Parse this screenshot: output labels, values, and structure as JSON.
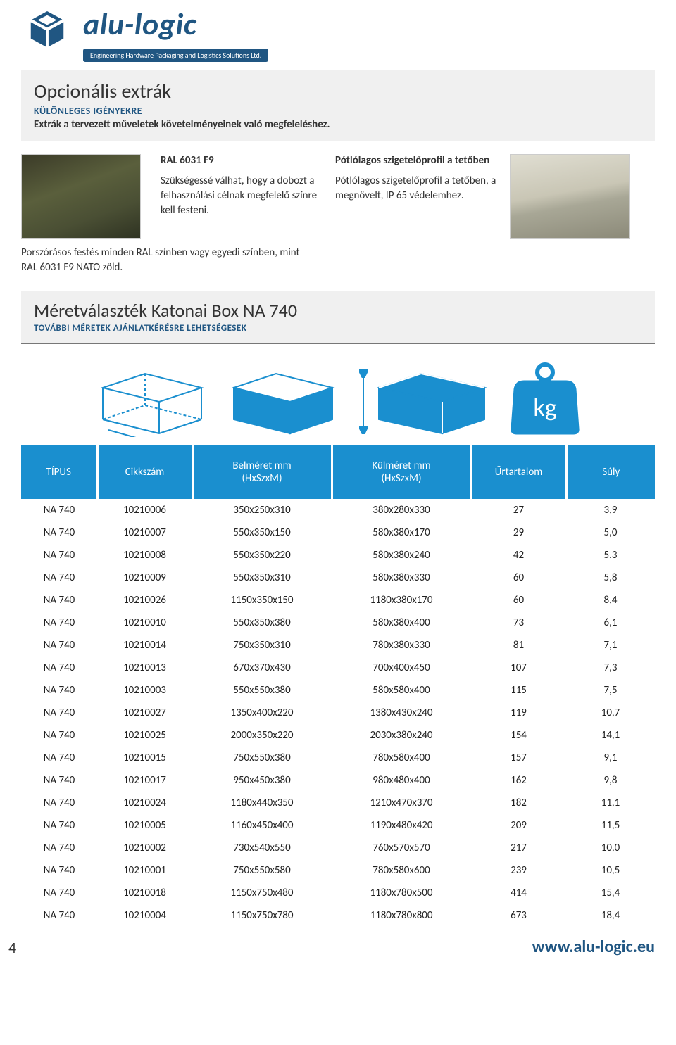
{
  "brand": {
    "name": "alu-logic",
    "tagline": "Engineering Hardware Packaging and Logistics Solutions Ltd.",
    "color_primary": "#205682",
    "color_accent": "#1a8fcf"
  },
  "extras_section": {
    "title": "Opcionális extrák",
    "subtitle1": "KÜLÖNLEGES IGÉNYEKRE",
    "subtitle2": "Extrák a tervezett műveletek követelményeinek való megfeleléshez.",
    "col1": {
      "heading": "RAL 6031 F9",
      "body": "Szükségessé válhat, hogy a dobozt a felhasználási célnak megfelelő színre kell festeni.",
      "caption": "Porszórásos festés minden RAL színben vagy egyedi színben, mint RAL 6031 F9 NATO zöld."
    },
    "col2": {
      "heading": "Pótlólagos szigetelőprofil a tetőben",
      "body": "Pótlólagos szigetelőprofil a tetőben, a megnövelt, IP 65 védelemhez."
    }
  },
  "sizes_section": {
    "title": "Méretválaszték Katonai Box NA 740",
    "subtitle": "TOVÁBBI MÉRETEK AJÁNLATKÉRÉSRE LEHETSÉGESEK"
  },
  "icons": {
    "kg_label": "kg",
    "stroke": "#1a8fcf",
    "fill": "#1a8fcf"
  },
  "table": {
    "columns": [
      "TÍPUS",
      "Cikkszám",
      "Belméret mm\n(HxSzxM)",
      "Külméret  mm\n(HxSzxM)",
      "Űrtartalom",
      "Súly"
    ],
    "rows": [
      [
        "NA 740",
        "10210006",
        "350x250x310",
        "380x280x330",
        "27",
        "3,9"
      ],
      [
        "NA 740",
        "10210007",
        "550x350x150",
        "580x380x170",
        "29",
        "5,0"
      ],
      [
        "NA 740",
        "10210008",
        "550x350x220",
        "580x380x240",
        "42",
        "5.3"
      ],
      [
        "NA 740",
        "10210009",
        "550x350x310",
        "580x380x330",
        "60",
        "5,8"
      ],
      [
        "NA 740",
        "10210026",
        "1150x350x150",
        "1180x380x170",
        "60",
        "8,4"
      ],
      [
        "NA 740",
        "10210010",
        "550x350x380",
        "580x380x400",
        "73",
        "6,1"
      ],
      [
        "NA 740",
        "10210014",
        "750x350x310",
        "780x380x330",
        "81",
        "7,1"
      ],
      [
        "NA 740",
        "10210013",
        "670x370x430",
        "700x400x450",
        "107",
        "7,3"
      ],
      [
        "NA 740",
        "10210003",
        "550x550x380",
        "580x580x400",
        "115",
        "7,5"
      ],
      [
        "NA 740",
        "10210027",
        "1350x400x220",
        "1380x430x240",
        "119",
        "10,7"
      ],
      [
        "NA 740",
        "10210025",
        "2000x350x220",
        "2030x380x240",
        "154",
        "14,1"
      ],
      [
        "NA 740",
        "10210015",
        "750x550x380",
        "780x580x400",
        "157",
        "9,1"
      ],
      [
        "NA 740",
        "10210017",
        "950x450x380",
        "980x480x400",
        "162",
        "9,8"
      ],
      [
        "NA 740",
        "10210024",
        "1180x440x350",
        "1210x470x370",
        "182",
        "11,1"
      ],
      [
        "NA 740",
        "10210005",
        "1160x450x400",
        "1190x480x420",
        "209",
        "11,5"
      ],
      [
        "NA 740",
        "10210002",
        "730x540x550",
        "760x570x570",
        "217",
        "10,0"
      ],
      [
        "NA 740",
        "10210001",
        "750x550x580",
        "780x580x600",
        "239",
        "10,5"
      ],
      [
        "NA 740",
        "10210018",
        "1150x750x480",
        "1180x780x500",
        "414",
        "15,4"
      ],
      [
        "NA 740",
        "10210004",
        "1150x750x780",
        "1180x780x800",
        "673",
        "18,4"
      ]
    ]
  },
  "footer": {
    "page": "4",
    "url": "www.alu-logic.eu"
  }
}
